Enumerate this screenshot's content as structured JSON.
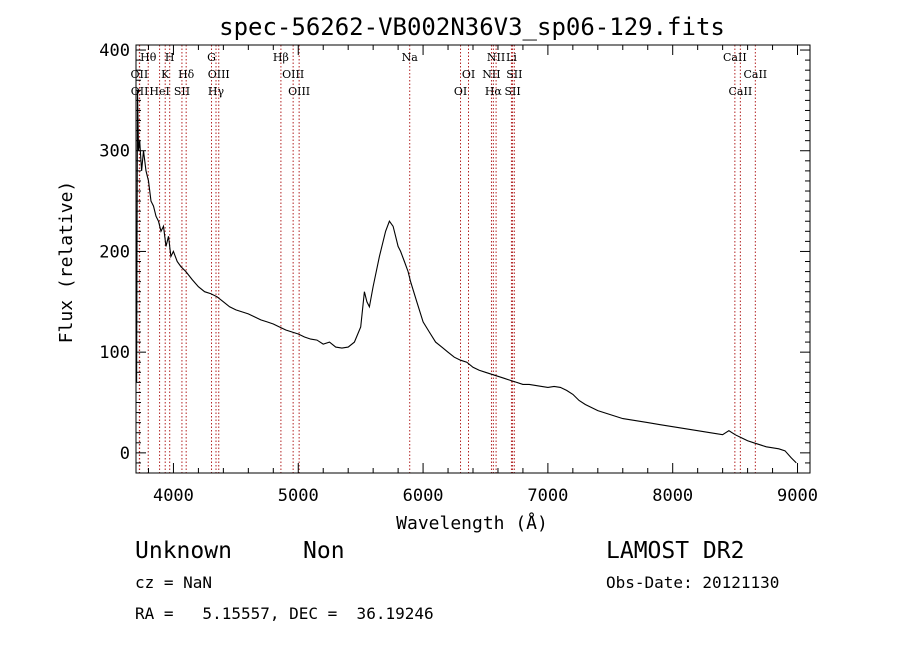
{
  "chart_data": {
    "type": "line",
    "title": "spec-56262-VB002N36V3_sp06-129.fits",
    "xlabel": "Wavelength (Å)",
    "ylabel": "Flux (relative)",
    "xlim": [
      3700,
      9100
    ],
    "ylim": [
      -20,
      405
    ],
    "xticks": [
      4000,
      5000,
      6000,
      7000,
      8000,
      9000
    ],
    "yticks": [
      0,
      100,
      200,
      300,
      400
    ],
    "grid": false,
    "line_color": "#000000",
    "marker_color": "#b22222",
    "spectrum": {
      "x": [
        3705,
        3712,
        3720,
        3730,
        3745,
        3760,
        3780,
        3800,
        3820,
        3840,
        3860,
        3880,
        3900,
        3920,
        3940,
        3960,
        3980,
        4000,
        4030,
        4060,
        4100,
        4150,
        4200,
        4250,
        4300,
        4350,
        4400,
        4450,
        4500,
        4550,
        4600,
        4650,
        4700,
        4750,
        4800,
        4850,
        4900,
        4950,
        5000,
        5050,
        5100,
        5150,
        5200,
        5250,
        5300,
        5350,
        5400,
        5450,
        5500,
        5530,
        5550,
        5570,
        5600,
        5650,
        5700,
        5730,
        5760,
        5780,
        5800,
        5820,
        5850,
        5880,
        5900,
        5950,
        6000,
        6050,
        6100,
        6150,
        6200,
        6250,
        6300,
        6350,
        6400,
        6450,
        6500,
        6550,
        6600,
        6650,
        6700,
        6750,
        6800,
        6850,
        6900,
        6950,
        7000,
        7050,
        7100,
        7150,
        7200,
        7250,
        7300,
        7400,
        7500,
        7600,
        7700,
        7800,
        7900,
        8000,
        8100,
        8200,
        8300,
        8400,
        8450,
        8500,
        8550,
        8600,
        8650,
        8700,
        8750,
        8800,
        8850,
        8900,
        8950,
        8990
      ],
      "y": [
        70,
        360,
        300,
        310,
        280,
        300,
        280,
        270,
        250,
        245,
        235,
        230,
        220,
        225,
        205,
        215,
        195,
        200,
        190,
        185,
        180,
        172,
        165,
        160,
        158,
        155,
        150,
        145,
        142,
        140,
        138,
        135,
        132,
        130,
        128,
        125,
        122,
        120,
        118,
        115,
        113,
        112,
        108,
        110,
        105,
        104,
        105,
        110,
        125,
        160,
        150,
        145,
        165,
        195,
        220,
        230,
        225,
        215,
        205,
        200,
        190,
        180,
        170,
        150,
        130,
        120,
        110,
        105,
        100,
        95,
        92,
        90,
        85,
        82,
        80,
        78,
        76,
        74,
        72,
        70,
        68,
        68,
        67,
        66,
        65,
        66,
        65,
        62,
        58,
        52,
        48,
        42,
        38,
        34,
        32,
        30,
        28,
        26,
        24,
        22,
        20,
        18,
        22,
        18,
        15,
        12,
        10,
        8,
        6,
        5,
        4,
        2,
        -5,
        -10
      ]
    },
    "lines": [
      {
        "label": "Hθ",
        "x": 3798,
        "row": 0
      },
      {
        "label": "H",
        "x": 3970,
        "row": 0
      },
      {
        "label": "G",
        "x": 4305,
        "row": 0
      },
      {
        "label": "Hβ",
        "x": 4861,
        "row": 0
      },
      {
        "label": "Na",
        "x": 5893,
        "row": 0
      },
      {
        "label": "NII",
        "x": 6585,
        "row": 0
      },
      {
        "label": "Li",
        "x": 6708,
        "row": 0
      },
      {
        "label": "CaII",
        "x": 8498,
        "row": 0
      },
      {
        "label": "OII",
        "x": 3727,
        "row": 1
      },
      {
        "label": "K",
        "x": 3934,
        "row": 1
      },
      {
        "label": "Hδ",
        "x": 4102,
        "row": 1
      },
      {
        "label": "OIII",
        "x": 4363,
        "row": 1
      },
      {
        "label": "OIII",
        "x": 4959,
        "row": 1
      },
      {
        "label": "OI",
        "x": 6364,
        "row": 1
      },
      {
        "label": "NII",
        "x": 6548,
        "row": 1
      },
      {
        "label": "SII",
        "x": 6731,
        "row": 1
      },
      {
        "label": "CaII",
        "x": 8662,
        "row": 1
      },
      {
        "label": "OII",
        "x": 3729,
        "row": 2
      },
      {
        "label": "HeI",
        "x": 3889,
        "row": 2
      },
      {
        "label": "SII",
        "x": 4068,
        "row": 2
      },
      {
        "label": "Hγ",
        "x": 4341,
        "row": 2
      },
      {
        "label": "OIII",
        "x": 5007,
        "row": 2
      },
      {
        "label": "OI",
        "x": 6300,
        "row": 2
      },
      {
        "label": "Hα",
        "x": 6563,
        "row": 2
      },
      {
        "label": "SII",
        "x": 6717,
        "row": 2
      },
      {
        "label": "CaII",
        "x": 8542,
        "row": 2
      }
    ]
  },
  "info": {
    "class": "Unknown",
    "subclass": "Non",
    "survey": "LAMOST DR2",
    "cz": "cz = NaN",
    "obs_date": "Obs-Date: 20121130",
    "radec": "RA =   5.15557, DEC =  36.19246"
  }
}
